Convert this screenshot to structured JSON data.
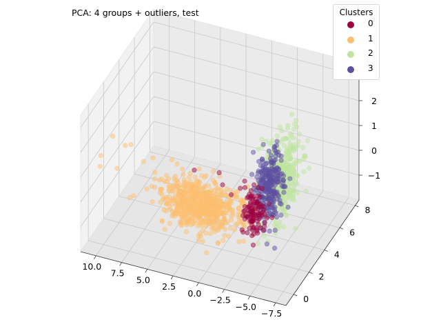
{
  "chart_data": {
    "type": "scatter",
    "projection": "3d",
    "title": "PCA: 4 groups + outliers, test",
    "legend": {
      "title": "Clusters",
      "placement": "top-right"
    },
    "grid": true,
    "xlim": [
      -8.5,
      11.5
    ],
    "ylim": [
      -1,
      8.5
    ],
    "zlim": [
      -2,
      3.5
    ],
    "x_ticks": [
      "10.0",
      "7.5",
      "5.0",
      "2.5",
      "0.0",
      "−2.5",
      "−5.0",
      "−7.5"
    ],
    "x_tick_values": [
      10,
      7.5,
      5,
      2.5,
      0,
      -2.5,
      -5,
      -7.5
    ],
    "y_ticks": [
      "0",
      "2",
      "4",
      "6",
      "8"
    ],
    "y_tick_values": [
      0,
      2,
      4,
      6,
      8
    ],
    "z_ticks": [
      "−1",
      "0",
      "1",
      "2",
      "3"
    ],
    "z_tick_values": [
      -1,
      0,
      1,
      2,
      3
    ],
    "series": [
      {
        "name": "0",
        "color": "#9e0142",
        "center": [
          -4.5,
          0.2,
          0.8
        ],
        "spread": [
          0.6,
          0.25,
          0.4
        ],
        "n": 110,
        "extra": [
          [
            -1.2,
            0.5,
            1.4
          ],
          [
            -0.8,
            0.6,
            1.8
          ],
          [
            -2.2,
            0.3,
            1.2
          ],
          [
            -3.0,
            0.4,
            1.5
          ],
          [
            1.4,
            0.3,
            1.8
          ]
        ]
      },
      {
        "name": "1",
        "color": "#fdbf6f",
        "center": [
          1.0,
          0.8,
          0.2
        ],
        "spread": [
          2.0,
          0.5,
          0.45
        ],
        "n": 650,
        "extra": [
          [
            9.5,
            0.5,
            2.2
          ],
          [
            8.5,
            0.8,
            1.8
          ],
          [
            10.5,
            0.3,
            1.4
          ],
          [
            7.8,
            0.6,
            2.0
          ],
          [
            9.0,
            0.4,
            1.0
          ],
          [
            6.5,
            0.5,
            1.5
          ],
          [
            10.8,
            0.6,
            0.8
          ],
          [
            8.0,
            0.7,
            -0.2
          ],
          [
            5.5,
            0.4,
            1.8
          ]
        ]
      },
      {
        "name": "2",
        "color": "#bfe5a0",
        "center": [
          -4.2,
          4.2,
          0.4
        ],
        "spread": [
          0.6,
          0.9,
          0.8
        ],
        "n": 320,
        "extra": []
      },
      {
        "name": "3",
        "color": "#5e4fa2",
        "center": [
          -5.0,
          1.5,
          1.3
        ],
        "spread": [
          0.5,
          0.6,
          0.7
        ],
        "n": 260,
        "extra": []
      }
    ]
  }
}
